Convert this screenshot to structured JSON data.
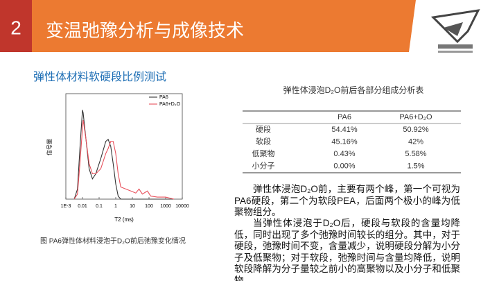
{
  "header": {
    "number": "2",
    "title": "变温弛豫分析与成像技术"
  },
  "subtitle": "弹性体材料软硬段比例测试",
  "chart_data": {
    "type": "line",
    "x": [
      0.0032,
      0.005,
      0.007,
      0.01,
      0.011,
      0.016,
      0.025,
      0.04,
      0.063,
      0.126,
      0.25,
      0.35,
      0.5,
      0.7,
      1,
      1.4,
      2,
      4,
      8,
      16,
      25,
      40,
      80,
      126,
      316,
      1000,
      3162
    ],
    "series": [
      {
        "name": "PA6",
        "color": "#333333",
        "values": [
          0,
          0.1,
          0.5,
          0.88,
          0.85,
          0.6,
          0.3,
          0.2,
          0.25,
          0.4,
          0.57,
          0.59,
          0.52,
          0.35,
          0.15,
          0.03,
          0,
          0,
          0,
          0,
          0,
          0,
          0,
          0,
          0,
          0,
          0
        ]
      },
      {
        "name": "PA6+D₂O",
        "color": "#e8505b",
        "values": [
          0,
          0.05,
          0.35,
          0.7,
          0.78,
          0.6,
          0.35,
          0.25,
          0.25,
          0.3,
          0.45,
          0.5,
          0.57,
          0.57,
          0.45,
          0.25,
          0.12,
          0.1,
          0.08,
          0.06,
          0.1,
          0.05,
          0.08,
          0.03,
          0.02,
          0.02,
          0
        ]
      }
    ],
    "x_label": "T2 (ms)",
    "y_label": "信号量",
    "log_x": true,
    "xlim": [
      0.001,
      10000
    ],
    "ylim": [
      0,
      1
    ],
    "xticks": [
      {
        "value": 0.001,
        "label": "1E-3"
      },
      0.01,
      0.1,
      1,
      10,
      100,
      1000,
      10000
    ],
    "legend": "upper right"
  },
  "caption": "图 PA6弹性体材料浸泡于D₂O前后弛豫变化情况",
  "table": {
    "title": "弹性体浸泡D₂O前后各部分组成分析表",
    "columns": [
      "PA6",
      "PA6+D₂O"
    ],
    "rows": [
      [
        "硬段",
        "54.41%",
        "50.92%"
      ],
      [
        "软段",
        "45.16%",
        "42%"
      ],
      [
        "低聚物",
        "0.43%",
        "5.58%"
      ],
      [
        "小分子",
        "0.00%",
        "1.5%"
      ]
    ]
  },
  "paragraphs": [
    "弹性体浸泡D₂O前，主要有两个峰，第一个可视为PA6硬段，第二个为软段PEA，后面两个极小的峰为低聚物组分。",
    "当弹性体浸泡于D₂O后，硬段与软段的含量均降低，同时出现了多个弛豫时间较长的组分。其中，对于硬段，弛豫时间不变，含量减少，说明硬段分解为小分子及低聚物；对于软段，弛豫时间与含量均降低，说明软段降解为分子量较之前小的高聚物以及小分子和低聚物。"
  ]
}
